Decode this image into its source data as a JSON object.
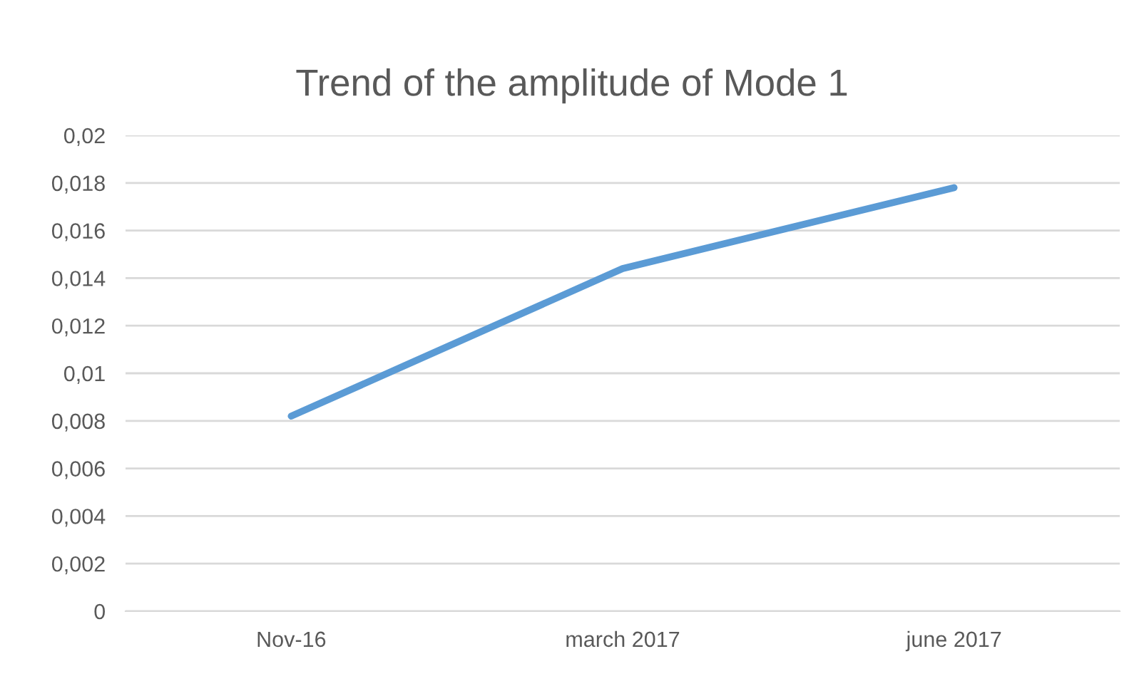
{
  "chart_data": {
    "type": "line",
    "title": "Trend of the amplitude of Mode 1",
    "categories": [
      "Nov-16",
      "march 2017",
      "june 2017"
    ],
    "series": [
      {
        "color": "#5b9bd5",
        "values": [
          0.0082,
          0.0144,
          0.0178
        ]
      }
    ],
    "ylim": [
      0,
      0.02
    ],
    "yticks": [
      {
        "value": 0,
        "label": "0"
      },
      {
        "value": 0.002,
        "label": "0,002"
      },
      {
        "value": 0.004,
        "label": "0,004"
      },
      {
        "value": 0.006,
        "label": "0,006"
      },
      {
        "value": 0.008,
        "label": "0,008"
      },
      {
        "value": 0.01,
        "label": "0,01"
      },
      {
        "value": 0.012,
        "label": "0,012"
      },
      {
        "value": 0.014,
        "label": "0,014"
      },
      {
        "value": 0.016,
        "label": "0,016"
      },
      {
        "value": 0.018,
        "label": "0,018"
      },
      {
        "value": 0.02,
        "label": "0,02"
      }
    ],
    "grid": "y",
    "legend": false,
    "marker": "none",
    "line_style": "solid"
  }
}
